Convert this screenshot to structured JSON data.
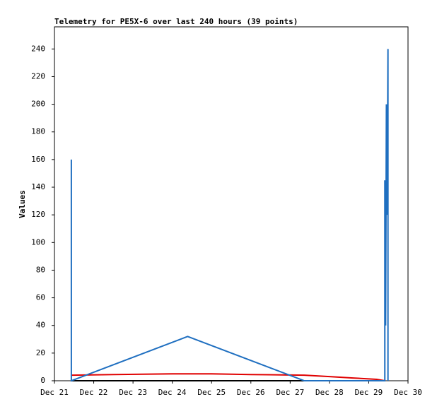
{
  "chart_data": {
    "type": "line",
    "title": "Telemetry for PE5X-6 over last 240 hours (39 points)",
    "y_label": "Values",
    "xlim": [
      21,
      30
    ],
    "xticks": [
      {
        "value": 21,
        "label": "Dec 21"
      },
      {
        "value": 22,
        "label": "Dec 22"
      },
      {
        "value": 23,
        "label": "Dec 23"
      },
      {
        "value": 24,
        "label": "Dec 24"
      },
      {
        "value": 25,
        "label": "Dec 25"
      },
      {
        "value": 26,
        "label": "Dec 26"
      },
      {
        "value": 27,
        "label": "Dec 27"
      },
      {
        "value": 28,
        "label": "Dec 28"
      },
      {
        "value": 29,
        "label": "Dec 29"
      },
      {
        "value": 30,
        "label": "Dec 30"
      }
    ],
    "ylim": [
      0,
      256
    ],
    "yticks": [
      0,
      20,
      40,
      60,
      80,
      100,
      120,
      140,
      160,
      180,
      200,
      220,
      240
    ],
    "grid": false,
    "series": [
      {
        "color": "#000000",
        "x": [
          21.43,
          29.41
        ],
        "values": [
          0,
          0
        ]
      },
      {
        "color": "#e00000",
        "x": [
          21.43,
          22.5,
          24.0,
          25.0,
          26.0,
          27.36,
          28.0,
          28.6,
          29.2,
          29.41
        ],
        "values": [
          4,
          4.5,
          5,
          5,
          4.5,
          4,
          3,
          2,
          1,
          0
        ]
      },
      {
        "color": "#1f6fc0",
        "x": [
          21.43,
          21.43,
          24.39,
          27.36,
          29.41,
          29.41,
          29.43,
          29.45,
          29.47,
          29.49,
          29.49
        ],
        "values": [
          160,
          0,
          32,
          0,
          0,
          145,
          40,
          200,
          120,
          240,
          0
        ]
      }
    ]
  }
}
